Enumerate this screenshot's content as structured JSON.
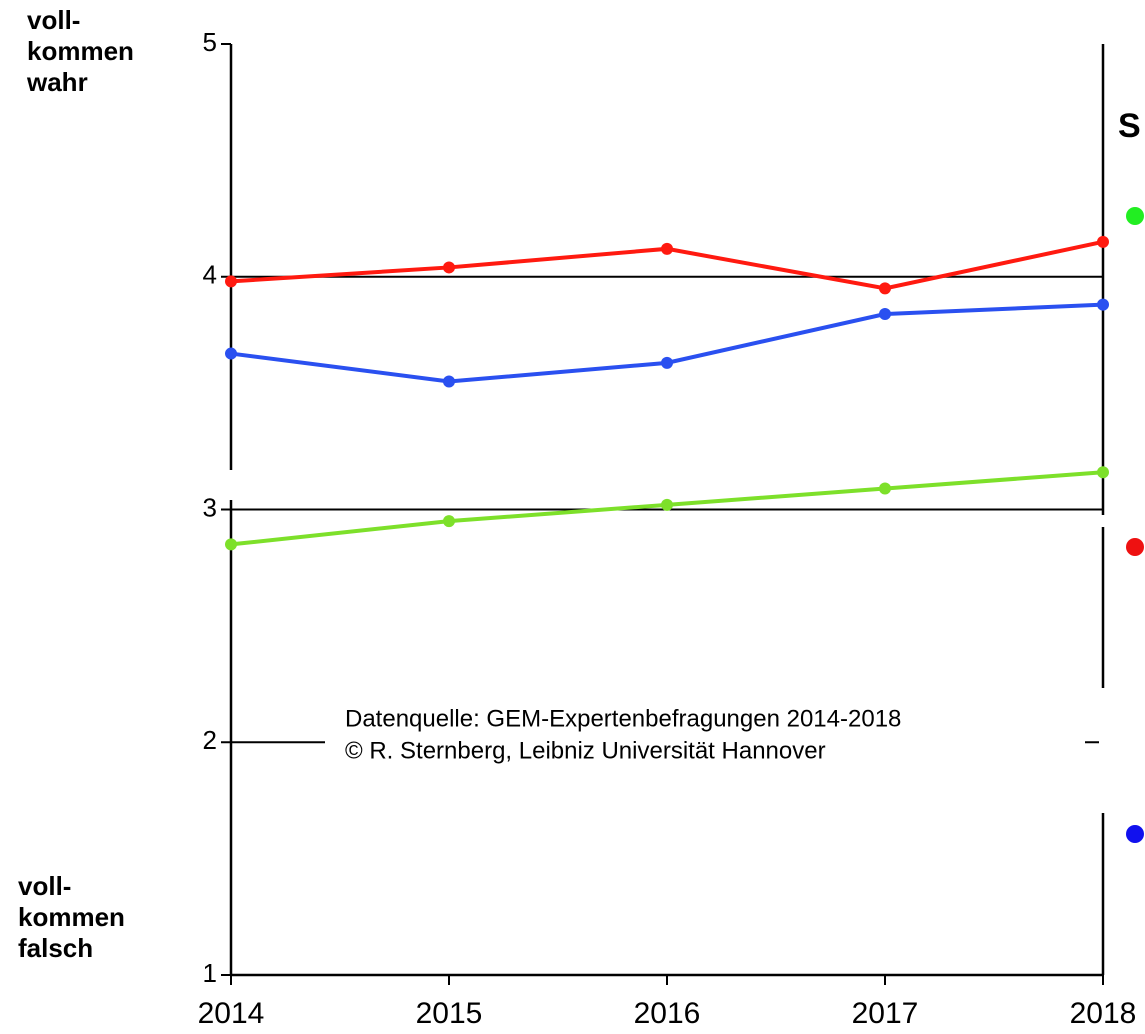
{
  "chart_data": {
    "type": "line",
    "y_label_top": [
      "voll-",
      "kommen",
      "wahr"
    ],
    "y_label_bottom": [
      "voll-",
      "kommen",
      "falsch"
    ],
    "annotation": [
      "Datenquelle: GEM-Expertenbefragungen 2014-2018",
      "© R. Sternberg, Leibniz Universität Hannover"
    ],
    "legend_title": "S",
    "categories": [
      "2014",
      "2015",
      "2016",
      "2017",
      "2018"
    ],
    "series": [
      {
        "color": "#7de02a",
        "values": [
          2.85,
          2.95,
          3.02,
          3.09,
          3.16
        ]
      },
      {
        "color": "#ff1a10",
        "values": [
          3.98,
          4.04,
          4.12,
          3.95,
          4.15
        ]
      },
      {
        "color": "#2a50f0",
        "values": [
          3.67,
          3.55,
          3.63,
          3.84,
          3.88
        ]
      }
    ],
    "legend_colors": [
      "#22ee22",
      "#ee1111",
      "#1111ee"
    ],
    "ylim": [
      1,
      5
    ],
    "yticks": [
      1,
      2,
      3,
      4,
      5
    ],
    "grid": true
  }
}
